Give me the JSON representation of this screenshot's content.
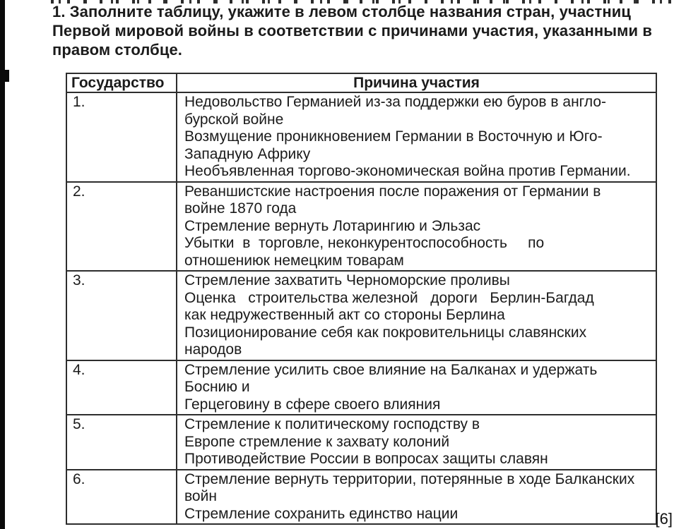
{
  "instruction": {
    "text": "1. Заполните таблицу, укажите в левом столбце названия стран, участниц\nПервой мировой войны в соответствии с причинами участия, указанными в\nправом столбце."
  },
  "table": {
    "header": {
      "state": "Государство",
      "reason": "Причина участия"
    },
    "rows": [
      {
        "num": "1.",
        "text": "Недовольство Германией из-за поддержки ею буров в англо-\nбурской войне\nВозмущение проникновением Германии в Восточную и Юго-\nЗападную Африку\nНеобъявленная торгово-экономическая война против Германии."
      },
      {
        "num": "2.",
        "text": "Реваншистские настроения после поражения от Германии в\nвойне 1870 года\nСтремление вернуть Лотарингию и Эльзас\nУбытки  в  торговле, неконкурентоспособность     по\nотношениюк немецким товарам"
      },
      {
        "num": "3.",
        "text": "Стремление захватить Черноморские проливы\nОценка   строительства железной   дороги   Берлин-Багдад\nкак недружественный акт со стороны Берлина\nПозиционирование себя как покровительницы славянских\nнародов"
      },
      {
        "num": "4.",
        "text": "Стремление усилить свое влияние на Балканах и удержать\nБоснию и\nГерцеговину в сфере своего влияния"
      },
      {
        "num": "5.",
        "text": "Стремление к политическому господству в\nЕвропе стремление к захвату колоний\nПротиводействие России в вопросах защиты славян"
      },
      {
        "num": "6.",
        "text": "Стремление вернуть территории, потерянные в ходе Балканских\nвойн\nСтремление сохранить единство нации"
      }
    ]
  },
  "footer": {
    "marks": "[6]"
  }
}
